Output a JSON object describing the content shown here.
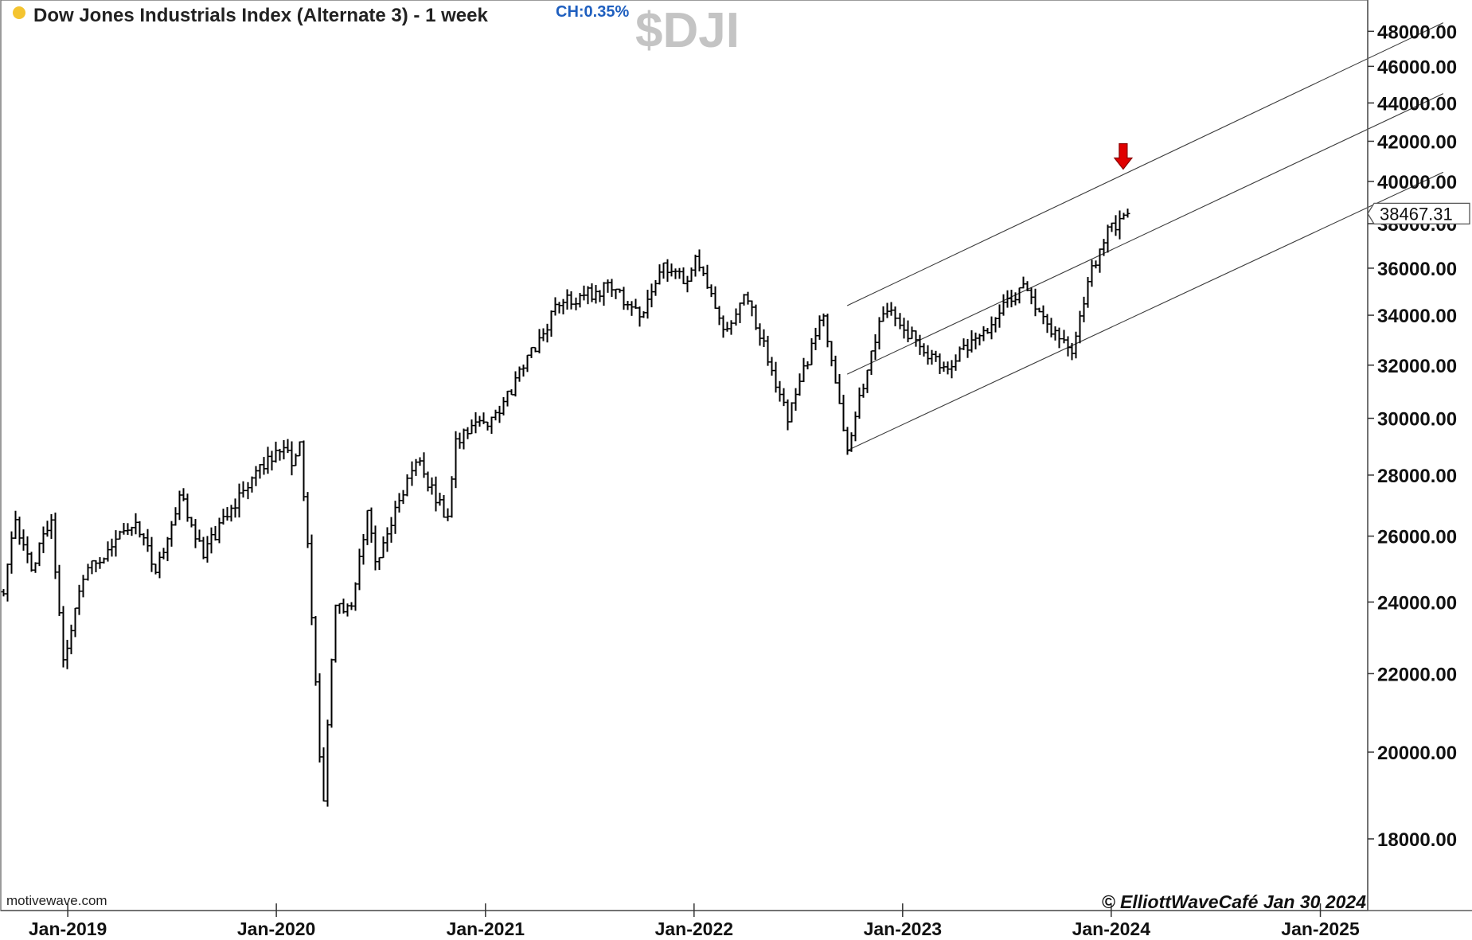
{
  "header": {
    "title": "Dow Jones Industrials Index (Alternate 3) - 1 week",
    "change": "CH:0.35%",
    "symbol": "$DJI",
    "status_dot_color": "#f4c430"
  },
  "footer": {
    "source": "motivewave.com",
    "copyright": "© ElliottWaveCafé Jan 30 2024"
  },
  "last_price_label": "38467.31",
  "annotation": {
    "type": "down-arrow",
    "color": "#e00000",
    "x": "2024-01-22",
    "y": 40600
  },
  "chart_data": {
    "type": "bar",
    "title": "Dow Jones Industrials Index (Alternate 3) - 1 week",
    "timeframe": "1 week",
    "xlabel": "",
    "ylabel": "",
    "y_scale": "log",
    "ylim": [
      17300,
      49000
    ],
    "x_range": [
      "2018-09-10",
      "2025-09-15"
    ],
    "y_ticks": [
      18000,
      20000,
      22000,
      24000,
      26000,
      28000,
      30000,
      32000,
      34000,
      36000,
      38000,
      40000,
      42000,
      44000,
      46000,
      48000
    ],
    "y_tick_labels": [
      "18000.00",
      "20000.00",
      "22000.00",
      "24000.00",
      "26000.00",
      "28000.00",
      "30000.00",
      "32000.00",
      "34000.00",
      "36000.00",
      "38000.00",
      "40000.00",
      "42000.00",
      "44000.00",
      "46000.00",
      "48000.00"
    ],
    "x_ticks": [
      "2019-01-01",
      "2020-01-01",
      "2021-01-01",
      "2022-01-01",
      "2023-01-01",
      "2024-01-01",
      "2025-01-01"
    ],
    "x_tick_labels": [
      "Jan-2019",
      "Jan-2020",
      "Jan-2021",
      "Jan-2022",
      "Jan-2023",
      "Jan-2024",
      "Jan-2025"
    ],
    "last_price": 38467.31,
    "grid": false,
    "anchors": [
      [
        "2018-09-10",
        24300
      ],
      [
        "2018-10-01",
        26500
      ],
      [
        "2018-10-29",
        25000
      ],
      [
        "2018-12-03",
        26500
      ],
      [
        "2018-12-24",
        22200
      ],
      [
        "2019-01-28",
        24800
      ],
      [
        "2019-04-29",
        26600
      ],
      [
        "2019-06-03",
        24800
      ],
      [
        "2019-07-15",
        27300
      ],
      [
        "2019-08-26",
        25500
      ],
      [
        "2019-11-25",
        28000
      ],
      [
        "2020-01-13",
        29100
      ],
      [
        "2020-01-27",
        28300
      ],
      [
        "2020-02-10",
        29350
      ],
      [
        "2020-02-24",
        25600
      ],
      [
        "2020-03-16",
        20000
      ],
      [
        "2020-03-23",
        18800
      ],
      [
        "2020-04-13",
        24000
      ],
      [
        "2020-05-11",
        23800
      ],
      [
        "2020-06-08",
        26800
      ],
      [
        "2020-06-22",
        25200
      ],
      [
        "2020-09-01",
        28500
      ],
      [
        "2020-10-26",
        26500
      ],
      [
        "2020-11-09",
        29200
      ],
      [
        "2021-01-25",
        30200
      ],
      [
        "2021-05-10",
        34500
      ],
      [
        "2021-08-09",
        35200
      ],
      [
        "2021-09-27",
        33900
      ],
      [
        "2021-11-08",
        36200
      ],
      [
        "2021-12-20",
        35300
      ],
      [
        "2022-01-03",
        36700
      ],
      [
        "2022-02-21",
        33200
      ],
      [
        "2022-03-28",
        35000
      ],
      [
        "2022-06-13",
        30000
      ],
      [
        "2022-08-15",
        34000
      ],
      [
        "2022-09-26",
        28900
      ],
      [
        "2022-11-28",
        34300
      ],
      [
        "2023-03-13",
        31800
      ],
      [
        "2023-05-29",
        33500
      ],
      [
        "2023-07-31",
        35300
      ],
      [
        "2023-09-25",
        33200
      ],
      [
        "2023-10-23",
        32500
      ],
      [
        "2023-11-20",
        35400
      ],
      [
        "2023-12-18",
        37400
      ],
      [
        "2024-01-29",
        38467
      ]
    ],
    "channel_lines": [
      {
        "from": [
          "2022-09-26",
          34400
        ],
        "to": [
          "2025-08-04",
          48500
        ]
      },
      {
        "from": [
          "2022-09-26",
          31650
        ],
        "to": [
          "2025-08-04",
          44500
        ]
      },
      {
        "from": [
          "2022-09-26",
          28850
        ],
        "to": [
          "2025-08-04",
          40450
        ]
      }
    ]
  }
}
